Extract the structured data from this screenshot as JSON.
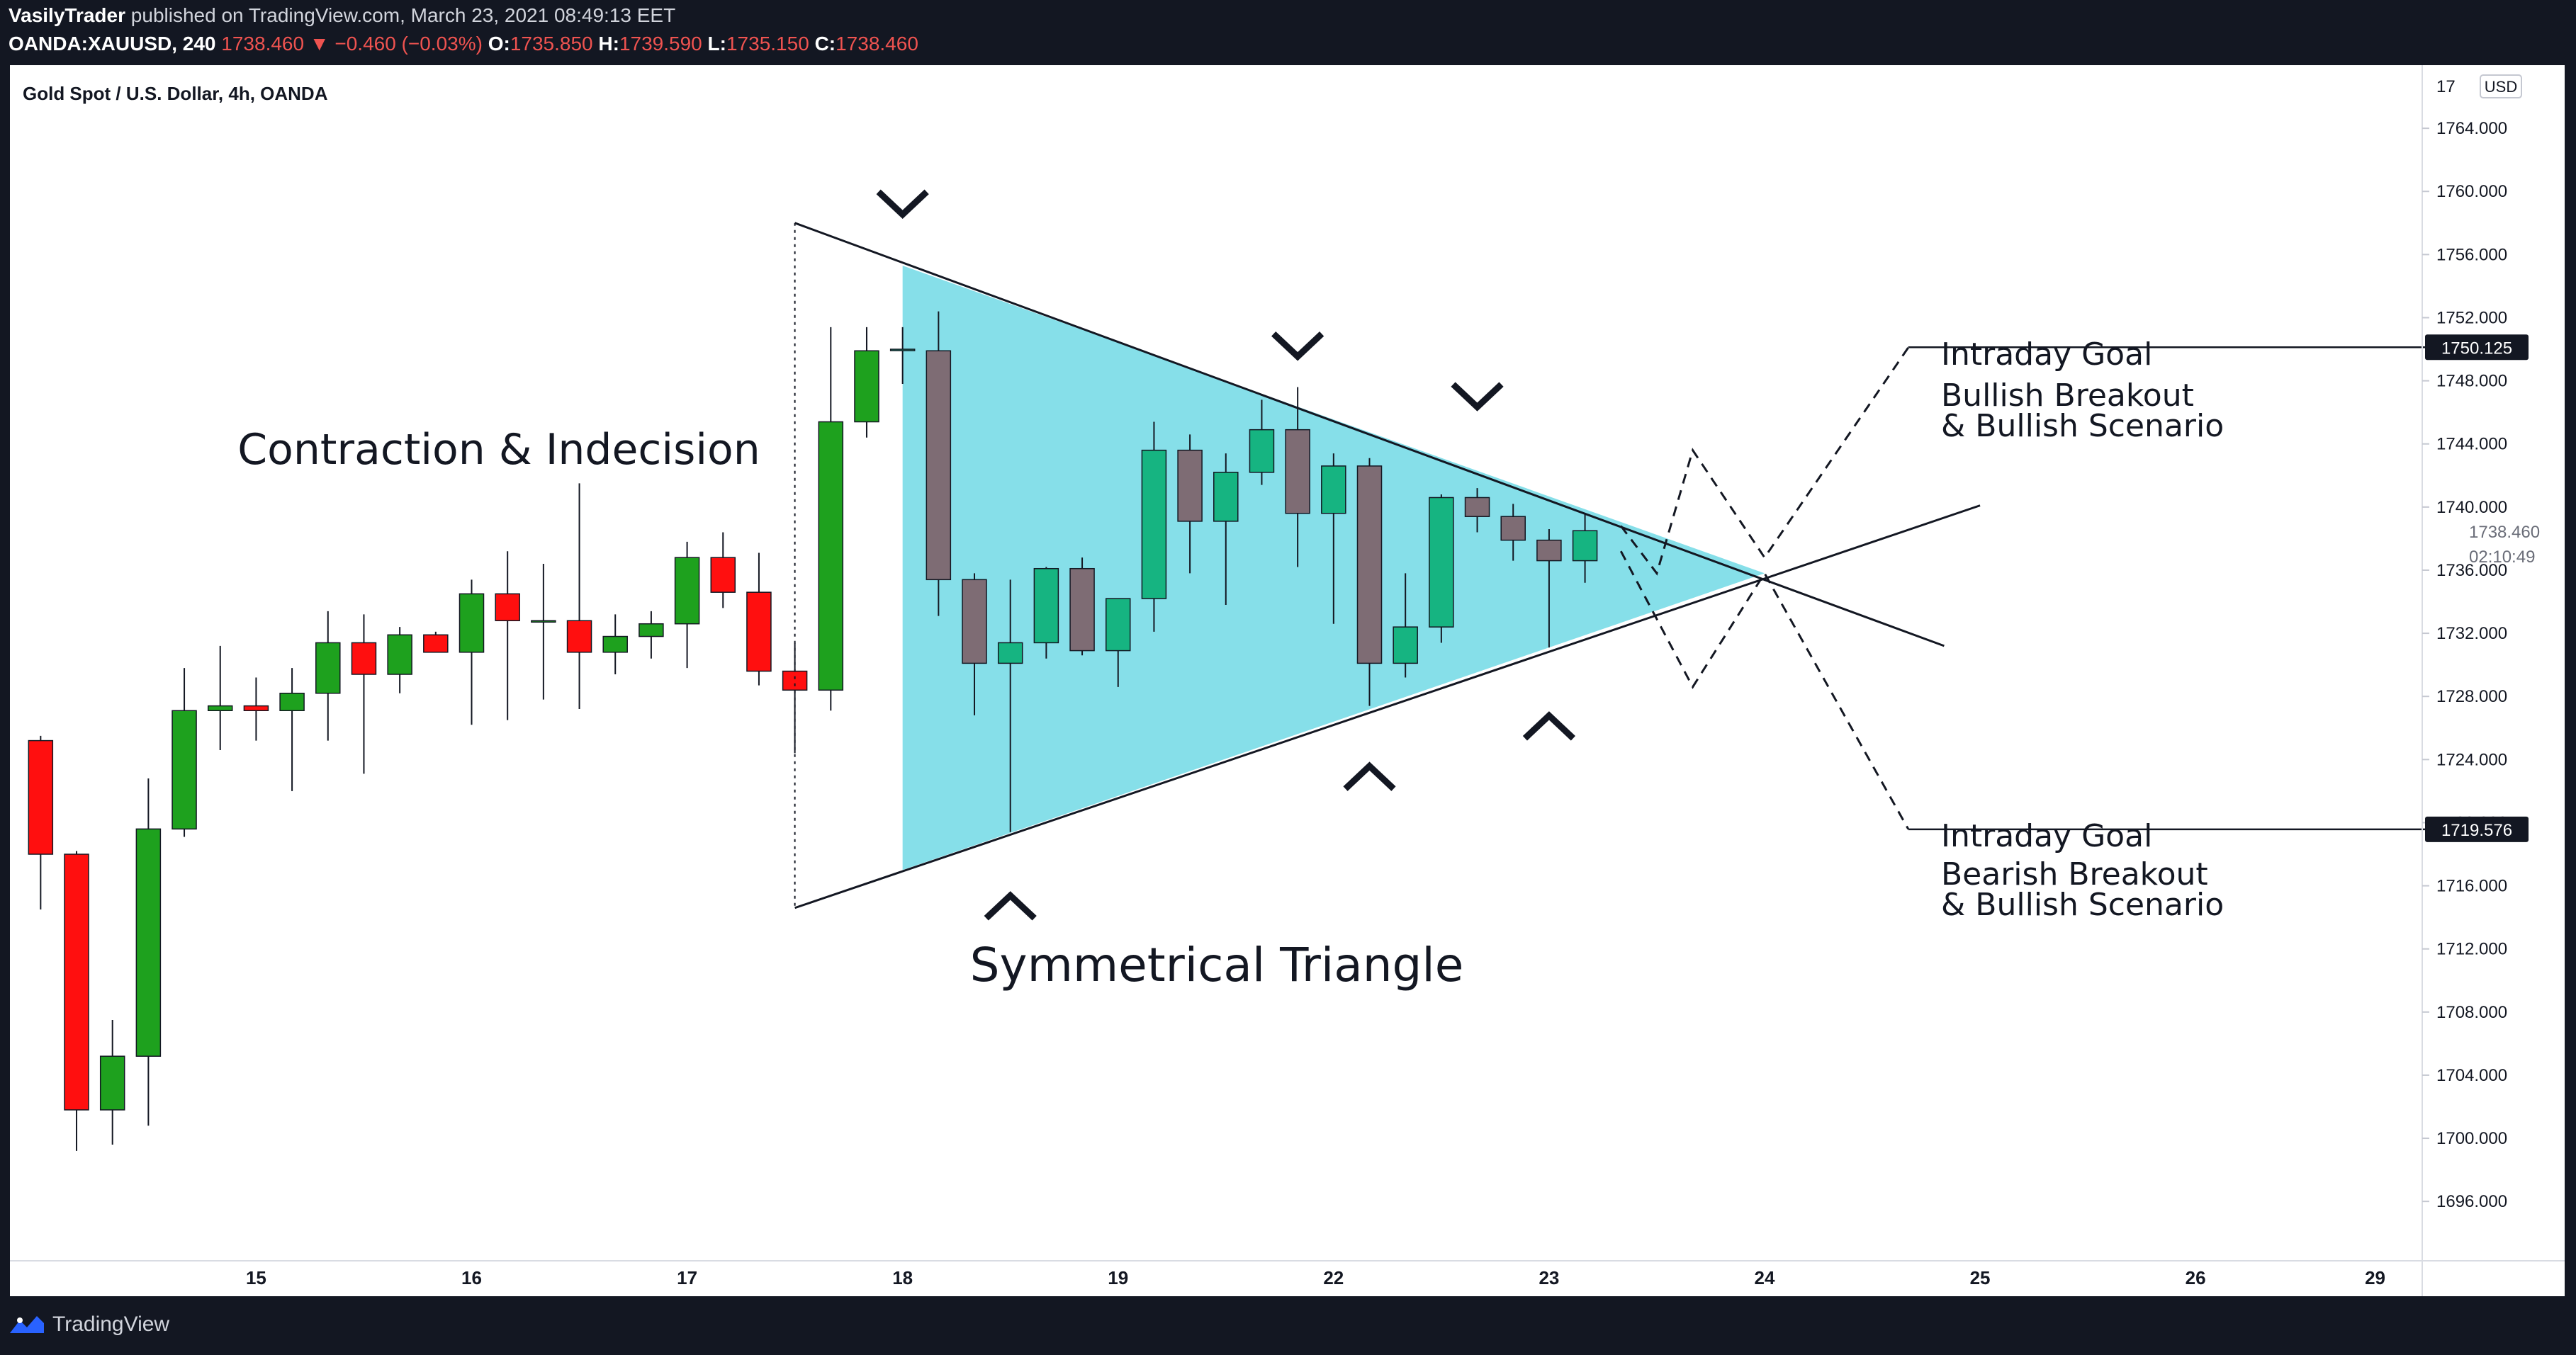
{
  "header": {
    "author": "VasilyTrader",
    "published_text": "published on TradingView.com, March 23, 2021 08:49:13 EET",
    "symbol": "OANDA:XAUUSD, 240",
    "last": "1738.460",
    "change": "−0.460 (−0.03%)",
    "o_label": "O:",
    "o": "1735.850",
    "h_label": "H:",
    "h": "1739.590",
    "l_label": "L:",
    "l": "1735.150",
    "c_label": "C:",
    "c": "1738.460"
  },
  "footer": {
    "brand": "TradingView"
  },
  "chart_data": {
    "type": "candlestick",
    "title": "Gold Spot / U.S. Dollar, 4h, OANDA",
    "currency": "USD",
    "y_axis_ticks": [
      1764,
      1760,
      1756,
      1752,
      1748,
      1744,
      1740,
      1736,
      1732,
      1728,
      1724,
      1720,
      1716,
      1712,
      1708,
      1704,
      1700,
      1696
    ],
    "y_axis_tick_labels": [
      "1764.000",
      "1760.000",
      "1756.000",
      "1752.000",
      "1748.000",
      "1744.000",
      "1740.000",
      "1736.000",
      "1732.000",
      "1728.000",
      "1724.000",
      "1720.000",
      "1716.000",
      "1712.000",
      "1708.000",
      "1704.000",
      "1700.000",
      "1696.000"
    ],
    "y_axis_top_label": "17",
    "ylim": [
      1692,
      1768
    ],
    "x_axis_labels": [
      {
        "label": "15",
        "bar": 6.5
      },
      {
        "label": "16",
        "bar": 12.5
      },
      {
        "label": "17",
        "bar": 18.5
      },
      {
        "label": "18",
        "bar": 24.5
      },
      {
        "label": "19",
        "bar": 30.5
      },
      {
        "label": "22",
        "bar": 36.5
      },
      {
        "label": "23",
        "bar": 42.5
      },
      {
        "label": "24",
        "bar": 48.5
      },
      {
        "label": "25",
        "bar": 54.5
      },
      {
        "label": "26",
        "bar": 60.5
      },
      {
        "label": "29",
        "bar": 65.5
      }
    ],
    "up_color": "#1ea11e",
    "down_color": "#ff0f0f",
    "triangle_up_color": "#16b481",
    "triangle_down_color": "#7e6c74",
    "triangle_fill": "#86dfe9",
    "candles": [
      {
        "o": 1725.2,
        "h": 1725.5,
        "l": 1714.5,
        "c": 1718.0
      },
      {
        "o": 1718.0,
        "h": 1718.2,
        "l": 1699.2,
        "c": 1701.8
      },
      {
        "o": 1701.8,
        "h": 1707.5,
        "l": 1699.6,
        "c": 1705.2
      },
      {
        "o": 1705.2,
        "h": 1722.8,
        "l": 1700.8,
        "c": 1719.6
      },
      {
        "o": 1719.6,
        "h": 1729.8,
        "l": 1719.1,
        "c": 1727.1
      },
      {
        "o": 1727.1,
        "h": 1731.2,
        "l": 1724.6,
        "c": 1727.4
      },
      {
        "o": 1727.4,
        "h": 1729.2,
        "l": 1725.2,
        "c": 1727.1
      },
      {
        "o": 1727.1,
        "h": 1729.8,
        "l": 1722.0,
        "c": 1728.2
      },
      {
        "o": 1728.2,
        "h": 1733.4,
        "l": 1725.2,
        "c": 1731.4
      },
      {
        "o": 1731.4,
        "h": 1733.2,
        "l": 1723.1,
        "c": 1729.4
      },
      {
        "o": 1729.4,
        "h": 1732.4,
        "l": 1728.2,
        "c": 1731.9
      },
      {
        "o": 1731.9,
        "h": 1732.1,
        "l": 1730.8,
        "c": 1730.8
      },
      {
        "o": 1730.8,
        "h": 1735.4,
        "l": 1726.2,
        "c": 1734.5
      },
      {
        "o": 1734.5,
        "h": 1737.2,
        "l": 1726.5,
        "c": 1732.8
      },
      {
        "o": 1732.8,
        "h": 1736.4,
        "l": 1727.8,
        "c": 1732.8
      },
      {
        "o": 1732.8,
        "h": 1741.5,
        "l": 1727.2,
        "c": 1730.8
      },
      {
        "o": 1730.8,
        "h": 1733.2,
        "l": 1729.4,
        "c": 1731.8
      },
      {
        "o": 1731.8,
        "h": 1733.4,
        "l": 1730.4,
        "c": 1732.6
      },
      {
        "o": 1732.6,
        "h": 1737.8,
        "l": 1729.8,
        "c": 1736.8
      },
      {
        "o": 1736.8,
        "h": 1738.4,
        "l": 1733.6,
        "c": 1734.6
      },
      {
        "o": 1734.6,
        "h": 1737.1,
        "l": 1728.7,
        "c": 1729.6
      },
      {
        "o": 1729.6,
        "h": 1731.4,
        "l": 1724.4,
        "c": 1728.4
      },
      {
        "o": 1728.4,
        "h": 1751.4,
        "l": 1727.1,
        "c": 1745.4
      },
      {
        "o": 1745.4,
        "h": 1751.4,
        "l": 1744.4,
        "c": 1749.9
      },
      {
        "o": 1750.0,
        "h": 1751.4,
        "l": 1747.8,
        "c": 1750.0
      },
      {
        "o": 1749.9,
        "h": 1752.4,
        "l": 1733.1,
        "c": 1735.4
      },
      {
        "o": 1735.4,
        "h": 1735.8,
        "l": 1726.8,
        "c": 1730.1
      },
      {
        "o": 1730.1,
        "h": 1735.4,
        "l": 1719.4,
        "c": 1731.4
      },
      {
        "o": 1731.4,
        "h": 1736.2,
        "l": 1730.4,
        "c": 1736.1
      },
      {
        "o": 1736.1,
        "h": 1736.8,
        "l": 1730.6,
        "c": 1730.9
      },
      {
        "o": 1730.9,
        "h": 1734.2,
        "l": 1728.6,
        "c": 1734.2
      },
      {
        "o": 1734.2,
        "h": 1745.4,
        "l": 1732.1,
        "c": 1743.6
      },
      {
        "o": 1743.6,
        "h": 1744.6,
        "l": 1735.8,
        "c": 1739.1
      },
      {
        "o": 1739.1,
        "h": 1743.4,
        "l": 1733.8,
        "c": 1742.2
      },
      {
        "o": 1742.2,
        "h": 1746.8,
        "l": 1741.4,
        "c": 1744.9
      },
      {
        "o": 1744.9,
        "h": 1747.6,
        "l": 1736.2,
        "c": 1739.6
      },
      {
        "o": 1739.6,
        "h": 1743.4,
        "l": 1732.6,
        "c": 1742.6
      },
      {
        "o": 1742.6,
        "h": 1743.1,
        "l": 1727.4,
        "c": 1730.1
      },
      {
        "o": 1730.1,
        "h": 1735.8,
        "l": 1729.2,
        "c": 1732.4
      },
      {
        "o": 1732.4,
        "h": 1740.8,
        "l": 1731.4,
        "c": 1740.6
      },
      {
        "o": 1740.6,
        "h": 1741.2,
        "l": 1738.4,
        "c": 1739.4
      },
      {
        "o": 1739.4,
        "h": 1740.2,
        "l": 1736.6,
        "c": 1737.9
      },
      {
        "o": 1737.9,
        "h": 1738.6,
        "l": 1731.1,
        "c": 1736.6
      },
      {
        "o": 1736.6,
        "h": 1739.6,
        "l": 1735.2,
        "c": 1738.5
      }
    ],
    "price_labels": [
      {
        "text": "1750.125",
        "value": 1750.125,
        "style": "dark"
      },
      {
        "text": "1719.576",
        "value": 1719.576,
        "style": "dark"
      },
      {
        "text": "1738.460",
        "value": 1738.46,
        "style": "light"
      },
      {
        "text": "02:10:49",
        "value": 1736.9,
        "style": "light"
      }
    ],
    "annotations": {
      "contraction": "Contraction & Indecision",
      "triangle_label": "Symmetrical Triangle",
      "bull_goal": "Intraday Goal",
      "bull_scenario_1": "Bullish Breakout",
      "bull_scenario_2": "& Bullish Scenario",
      "bear_goal": "Intraday Goal",
      "bear_scenario_1": "Bearish Breakout",
      "bear_scenario_2": "& Bullish Scenario"
    },
    "drawings": {
      "triangle_fill": [
        {
          "bar": 24.5,
          "price": 1755.3
        },
        {
          "bar": 24.5,
          "price": 1717.0
        },
        {
          "bar": 48.5,
          "price": 1735.8
        }
      ],
      "upper_line": [
        {
          "bar": 21.5,
          "price": 1758.0
        },
        {
          "bar": 53.5,
          "price": 1731.2
        }
      ],
      "lower_line": [
        {
          "bar": 21.5,
          "price": 1714.6
        },
        {
          "bar": 54.5,
          "price": 1740.1
        }
      ],
      "vertical_dotted": [
        {
          "bar": 21.5,
          "price": 1758.0
        },
        {
          "bar": 21.5,
          "price": 1714.6
        }
      ],
      "zigzag_dashed": [
        {
          "bar": 44.5,
          "price": 1738.8
        },
        {
          "bar": 45.5,
          "price": 1735.8
        },
        {
          "bar": 46.5,
          "price": 1743.6
        },
        {
          "bar": 48.5,
          "price": 1736.8
        },
        {
          "bar": 52.5,
          "price": 1750.1
        }
      ],
      "zigzag_dashed_2": [
        {
          "bar": 44.5,
          "price": 1737.2
        },
        {
          "bar": 46.5,
          "price": 1728.6
        },
        {
          "bar": 48.5,
          "price": 1735.8
        },
        {
          "bar": 52.5,
          "price": 1719.6
        }
      ],
      "goal_line_bull": [
        {
          "bar": 52.5,
          "price": 1750.125
        },
        {
          "bar": 67.8,
          "price": 1750.125
        }
      ],
      "goal_line_bear": [
        {
          "bar": 52.5,
          "price": 1719.576
        },
        {
          "bar": 67.8,
          "price": 1719.576
        }
      ],
      "down_markers": [
        {
          "bar": 24.5,
          "price": 1758.0
        },
        {
          "bar": 35.5,
          "price": 1749.0
        },
        {
          "bar": 40.5,
          "price": 1745.8
        }
      ],
      "up_markers": [
        {
          "bar": 27.5,
          "price": 1717.0
        },
        {
          "bar": 37.5,
          "price": 1725.2
        },
        {
          "bar": 42.5,
          "price": 1728.4
        }
      ]
    }
  }
}
